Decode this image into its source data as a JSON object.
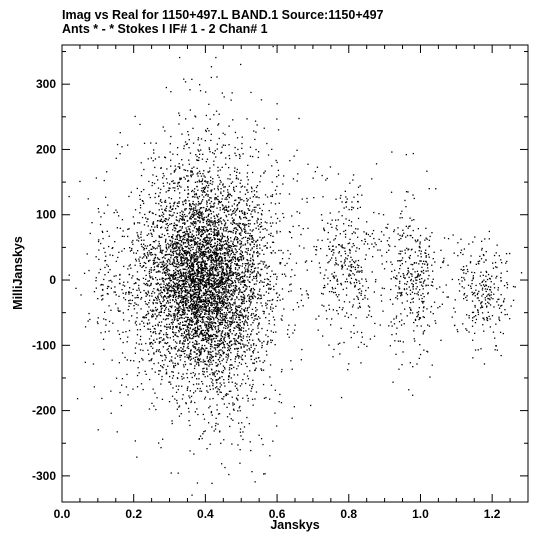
{
  "chart_data": {
    "type": "scatter",
    "title": "Imag vs Real for 1150+497.L BAND.1   Source:1150+497",
    "subtitle": "Ants * - *     Stokes I  IF# 1 - 2  Chan# 1",
    "xlabel": "Janskys",
    "ylabel": "MilliJanskys",
    "xlim": [
      0.0,
      1.3
    ],
    "ylim": [
      -340,
      360
    ],
    "x_ticks": [
      "0.0",
      "0.2",
      "0.4",
      "0.6",
      "0.8",
      "1.0",
      "1.2"
    ],
    "x_tick_values": [
      0.0,
      0.2,
      0.4,
      0.6,
      0.8,
      1.0,
      1.2
    ],
    "y_ticks": [
      "300",
      "200",
      "100",
      "0",
      "-100",
      "-200",
      "-300"
    ],
    "y_tick_values": [
      300,
      200,
      100,
      0,
      -100,
      -200,
      -300
    ],
    "marker_color": "#000000",
    "grid": false,
    "legend": "none",
    "clusters": [
      {
        "x_center": 0.39,
        "x_spread": 0.07,
        "y_center": 0,
        "y_spread": 65,
        "count": 2600
      },
      {
        "x_center": 0.38,
        "x_spread": 0.12,
        "y_center": 0,
        "y_spread": 100,
        "count": 2300
      },
      {
        "x_center": 0.45,
        "x_spread": 0.09,
        "y_center": 10,
        "y_spread": 120,
        "count": 900
      },
      {
        "x_center": 0.13,
        "x_spread": 0.025,
        "y_center": 20,
        "y_spread": 50,
        "count": 80
      },
      {
        "x_center": 0.8,
        "x_spread": 0.05,
        "y_center": 20,
        "y_spread": 60,
        "count": 360
      },
      {
        "x_center": 0.98,
        "x_spread": 0.04,
        "y_center": 0,
        "y_spread": 60,
        "count": 360
      },
      {
        "x_center": 1.18,
        "x_spread": 0.04,
        "y_center": -20,
        "y_spread": 40,
        "count": 260
      }
    ]
  }
}
